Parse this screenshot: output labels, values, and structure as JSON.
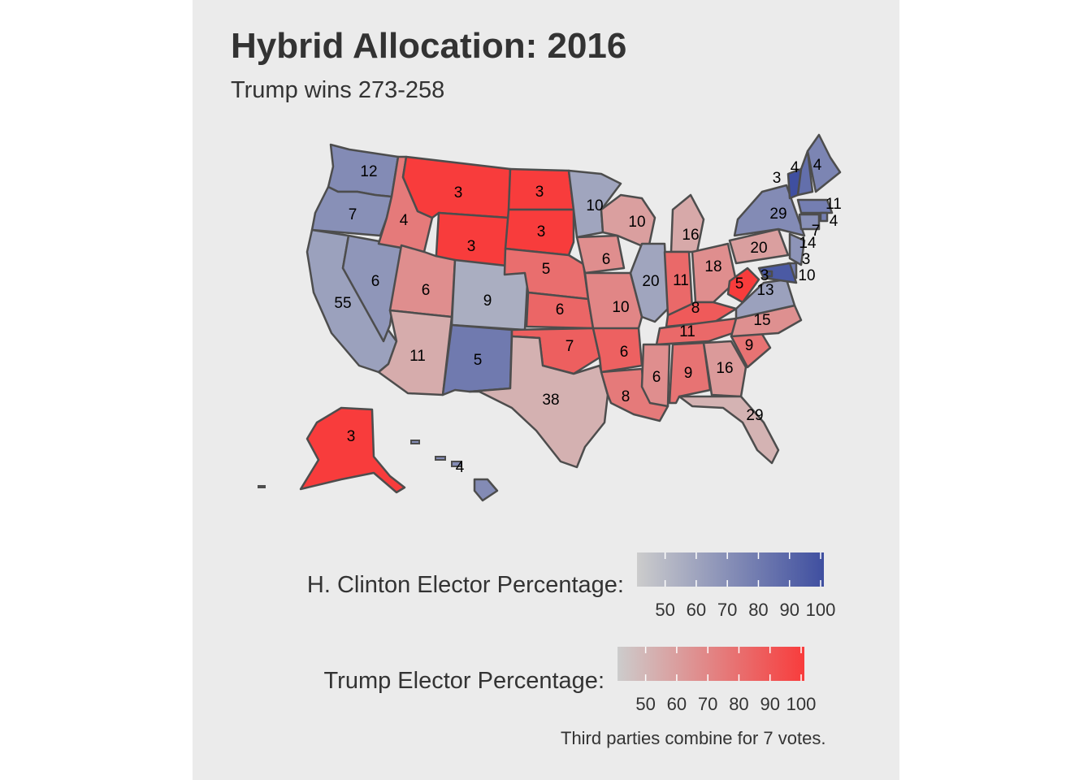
{
  "title": "Hybrid Allocation: 2016",
  "subtitle": "Trump wins 273-258",
  "caption": "Third parties combine for 7 votes.",
  "colors": {
    "panel": "#ebebeb",
    "border": "#4d4d4d",
    "clinton_low": "#cccccc",
    "clinton_high": "#3f4fa0",
    "trump_low": "#cccccc",
    "trump_high": "#f83c3c"
  },
  "legends": [
    {
      "id": "clinton",
      "title": "H. Clinton Elector Percentage:",
      "scale_min": 42,
      "scale_max": 100,
      "ticks": [
        "50",
        "60",
        "70",
        "80",
        "90",
        "100"
      ]
    },
    {
      "id": "trump",
      "title": "Trump Elector Percentage:",
      "scale_min": 42,
      "scale_max": 100,
      "ticks": [
        "50",
        "60",
        "70",
        "80",
        "90",
        "100"
      ]
    }
  ],
  "states": [
    {
      "abbr": "WA",
      "votes": "12",
      "winner": "clinton",
      "pct": 72
    },
    {
      "abbr": "OR",
      "votes": "7",
      "winner": "clinton",
      "pct": 70
    },
    {
      "abbr": "CA",
      "votes": "55",
      "winner": "clinton",
      "pct": 62
    },
    {
      "abbr": "NV",
      "votes": "6",
      "winner": "clinton",
      "pct": 67
    },
    {
      "abbr": "ID",
      "votes": "4",
      "winner": "trump",
      "pct": 75
    },
    {
      "abbr": "MT",
      "votes": "3",
      "winner": "trump",
      "pct": 100
    },
    {
      "abbr": "WY",
      "votes": "3",
      "winner": "trump",
      "pct": 100
    },
    {
      "abbr": "UT",
      "votes": "6",
      "winner": "trump",
      "pct": 67
    },
    {
      "abbr": "AZ",
      "votes": "11",
      "winner": "trump",
      "pct": 55
    },
    {
      "abbr": "CO",
      "votes": "9",
      "winner": "clinton",
      "pct": 56
    },
    {
      "abbr": "NM",
      "votes": "5",
      "winner": "clinton",
      "pct": 80
    },
    {
      "abbr": "ND",
      "votes": "3",
      "winner": "trump",
      "pct": 100
    },
    {
      "abbr": "SD",
      "votes": "3",
      "winner": "trump",
      "pct": 100
    },
    {
      "abbr": "NE",
      "votes": "5",
      "winner": "trump",
      "pct": 80
    },
    {
      "abbr": "KS",
      "votes": "6",
      "winner": "trump",
      "pct": 83
    },
    {
      "abbr": "OK",
      "votes": "7",
      "winner": "trump",
      "pct": 86
    },
    {
      "abbr": "TX",
      "votes": "38",
      "winner": "trump",
      "pct": 53
    },
    {
      "abbr": "MN",
      "votes": "10",
      "winner": "clinton",
      "pct": 60
    },
    {
      "abbr": "IA",
      "votes": "6",
      "winner": "trump",
      "pct": 67
    },
    {
      "abbr": "MO",
      "votes": "10",
      "winner": "trump",
      "pct": 70
    },
    {
      "abbr": "AR",
      "votes": "6",
      "winner": "trump",
      "pct": 85
    },
    {
      "abbr": "LA",
      "votes": "8",
      "winner": "trump",
      "pct": 75
    },
    {
      "abbr": "WI",
      "votes": "10",
      "winner": "trump",
      "pct": 60
    },
    {
      "abbr": "IL",
      "votes": "20",
      "winner": "clinton",
      "pct": 60
    },
    {
      "abbr": "MI",
      "votes": "16",
      "winner": "trump",
      "pct": 56
    },
    {
      "abbr": "IN",
      "votes": "11",
      "winner": "trump",
      "pct": 82
    },
    {
      "abbr": "OH",
      "votes": "18",
      "winner": "trump",
      "pct": 67
    },
    {
      "abbr": "KY",
      "votes": "8",
      "winner": "trump",
      "pct": 88
    },
    {
      "abbr": "TN",
      "votes": "11",
      "winner": "trump",
      "pct": 82
    },
    {
      "abbr": "MS",
      "votes": "6",
      "winner": "trump",
      "pct": 67
    },
    {
      "abbr": "AL",
      "votes": "9",
      "winner": "trump",
      "pct": 78
    },
    {
      "abbr": "GA",
      "votes": "16",
      "winner": "trump",
      "pct": 62
    },
    {
      "abbr": "FL",
      "votes": "29",
      "winner": "trump",
      "pct": 52
    },
    {
      "abbr": "SC",
      "votes": "9",
      "winner": "trump",
      "pct": 78
    },
    {
      "abbr": "NC",
      "votes": "15",
      "winner": "trump",
      "pct": 66
    },
    {
      "abbr": "VA",
      "votes": "13",
      "winner": "clinton",
      "pct": 62
    },
    {
      "abbr": "WV",
      "votes": "5",
      "winner": "trump",
      "pct": 100
    },
    {
      "abbr": "PA",
      "votes": "20",
      "winner": "trump",
      "pct": 60
    },
    {
      "abbr": "NY",
      "votes": "29",
      "winner": "clinton",
      "pct": 72
    },
    {
      "abbr": "VT",
      "votes": "3",
      "winner": "clinton",
      "pct": 100
    },
    {
      "abbr": "NH",
      "votes": "4",
      "winner": "clinton",
      "pct": 85
    },
    {
      "abbr": "ME",
      "votes": "4",
      "winner": "clinton",
      "pct": 75
    },
    {
      "abbr": "MA",
      "votes": "11",
      "winner": "clinton",
      "pct": 78
    },
    {
      "abbr": "RI",
      "votes": "4",
      "winner": "clinton",
      "pct": 78
    },
    {
      "abbr": "CT",
      "votes": "7",
      "winner": "clinton",
      "pct": 70
    },
    {
      "abbr": "NJ",
      "votes": "14",
      "winner": "clinton",
      "pct": 68
    },
    {
      "abbr": "DE",
      "votes": "3",
      "winner": "clinton",
      "pct": 78
    },
    {
      "abbr": "MD",
      "votes": "10",
      "winner": "clinton",
      "pct": 95
    },
    {
      "abbr": "DC",
      "votes": "3",
      "winner": "clinton",
      "pct": 100
    },
    {
      "abbr": "AK",
      "votes": "3",
      "winner": "trump",
      "pct": 100
    },
    {
      "abbr": "HI",
      "votes": "4",
      "winner": "clinton",
      "pct": 72
    }
  ]
}
